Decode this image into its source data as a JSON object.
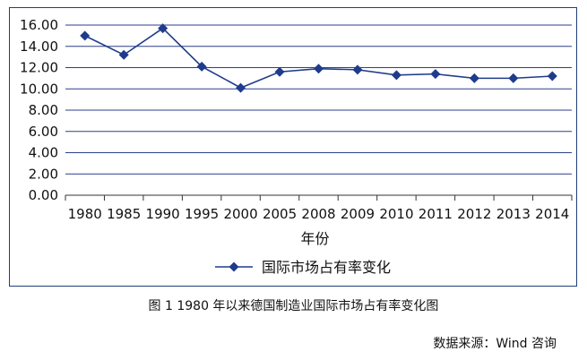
{
  "chart_data": {
    "type": "line",
    "categories": [
      "1980",
      "1985",
      "1990",
      "1995",
      "2000",
      "2005",
      "2008",
      "2009",
      "2010",
      "2011",
      "2012",
      "2013",
      "2014"
    ],
    "series": [
      {
        "name": "国际市场占有率变化",
        "values": [
          15.0,
          13.2,
          15.7,
          12.1,
          10.1,
          11.6,
          11.9,
          11.8,
          11.3,
          11.4,
          11.0,
          11.0,
          11.2
        ],
        "color": "#1f3b8c"
      }
    ],
    "yticks": [
      "0.00",
      "2.00",
      "4.00",
      "6.00",
      "8.00",
      "10.00",
      "12.00",
      "14.00",
      "16.00"
    ],
    "ylim": [
      0,
      16
    ],
    "xlabel": "年份",
    "ylabel": "",
    "grid": true,
    "legend_position": "bottom"
  },
  "caption": "图 1  1980 年以来德国制造业国际市场占有率变化图",
  "source": "数据来源：Wind 咨询"
}
